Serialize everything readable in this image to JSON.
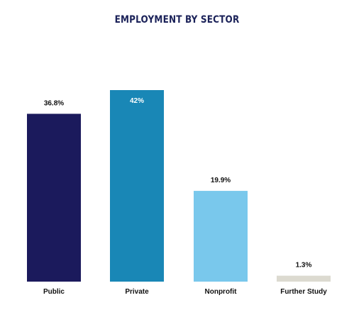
{
  "chart_data": {
    "type": "bar",
    "title": "EMPLOYMENT BY SECTOR",
    "categories": [
      "Public",
      "Private",
      "Nonprofit",
      "Further Study"
    ],
    "values": [
      36.8,
      42,
      19.9,
      1.3
    ],
    "value_labels": [
      "36.8%",
      "42%",
      "19.9%",
      "1.3%"
    ],
    "unit": "%",
    "ylim": [
      0,
      42
    ],
    "grid": false,
    "legend": "none",
    "colors": [
      "#1b1a5c",
      "#1987b6",
      "#79c8ec",
      "#dcdad0"
    ],
    "label_colors": [
      "#111111",
      "#ffffff",
      "#111111",
      "#111111"
    ]
  }
}
